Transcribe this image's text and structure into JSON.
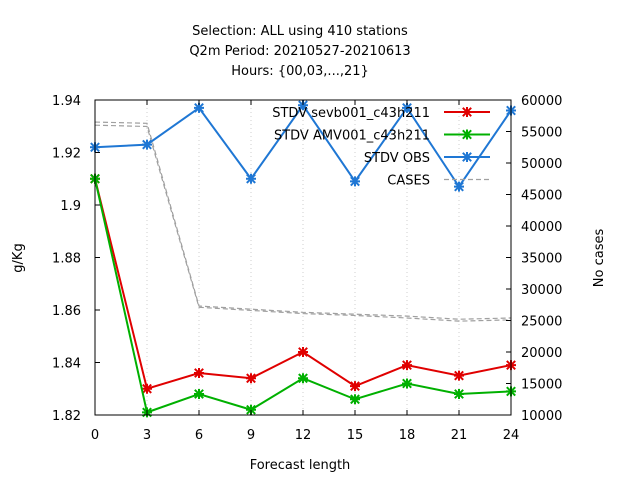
{
  "chart_data": {
    "type": "line",
    "title_lines": [
      "Selection: ALL using   410 stations",
      "Q2m   Period: 20210527-20210613",
      "Hours: {00,03,...,21}"
    ],
    "xlabel": "Forecast length",
    "ylabel": "g/Kg",
    "y2label": "No cases",
    "x": [
      0,
      3,
      6,
      9,
      12,
      15,
      18,
      21,
      24
    ],
    "xlim": [
      0,
      24
    ],
    "ylim": [
      1.82,
      1.94
    ],
    "y2lim": [
      10000,
      60000
    ],
    "xticks": [
      "0",
      "3",
      "6",
      "9",
      "12",
      "15",
      "18",
      "21",
      "24"
    ],
    "yticks": [
      "1.82",
      "1.84",
      "1.86",
      "1.88",
      "1.9",
      "1.92",
      "1.94"
    ],
    "y2ticks": [
      "10000",
      "15000",
      "20000",
      "25000",
      "30000",
      "35000",
      "40000",
      "45000",
      "50000",
      "55000",
      "60000"
    ],
    "legend_position": "top-right",
    "series": [
      {
        "name": "STDV sevb001_c43h211",
        "color": "#e00000",
        "axis": "y",
        "style": "line-points",
        "values": [
          1.91,
          1.83,
          1.836,
          1.834,
          1.844,
          1.831,
          1.839,
          1.835,
          1.839
        ]
      },
      {
        "name": "STDV AMV001_c43h211",
        "color": "#00b000",
        "axis": "y",
        "style": "line-points",
        "values": [
          1.91,
          1.821,
          1.828,
          1.822,
          1.834,
          1.826,
          1.832,
          1.828,
          1.829
        ]
      },
      {
        "name": "STDV OBS",
        "color": "#1f77d4",
        "axis": "y",
        "style": "line-points",
        "values": [
          1.922,
          1.923,
          1.937,
          1.91,
          1.938,
          1.909,
          1.937,
          1.907,
          1.936
        ]
      },
      {
        "name": "CASES",
        "color": "#a0a0a0",
        "axis": "y2",
        "style": "dashed",
        "values": [
          56500,
          56300,
          27300,
          26800,
          26300,
          26000,
          25700,
          25200,
          25400
        ]
      },
      {
        "name": "",
        "color": "#a0a0a0",
        "axis": "y2",
        "style": "dashed",
        "values": [
          56000,
          55800,
          27100,
          26600,
          26100,
          25800,
          25400,
          24900,
          25100
        ]
      }
    ]
  }
}
